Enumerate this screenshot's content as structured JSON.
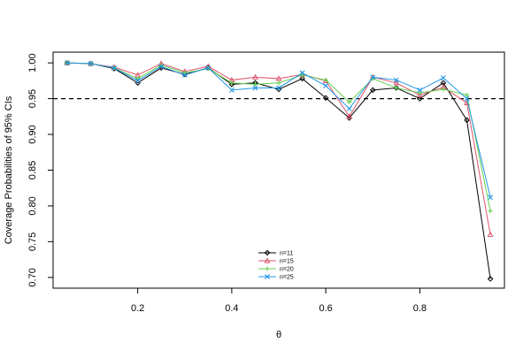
{
  "chart_data": {
    "type": "line",
    "title": "",
    "xlabel": "θ",
    "ylabel": "Coverage Probabilities of 95% CIs",
    "xlim": [
      0.02,
      0.98
    ],
    "ylim": [
      0.685,
      1.015
    ],
    "xticks": [
      0.2,
      0.4,
      0.6,
      0.8
    ],
    "yticks": [
      0.7,
      0.75,
      0.8,
      0.85,
      0.9,
      0.95,
      1.0
    ],
    "x_tick_labels": [
      "0.2",
      "0.4",
      "0.6",
      "0.8"
    ],
    "y_tick_labels": [
      "0.70",
      "0.75",
      "0.80",
      "0.85",
      "0.90",
      "0.95",
      "1.00"
    ],
    "reference_line": {
      "y": 0.95,
      "style": "dashed"
    },
    "grid": false,
    "legend_position": "bottom-center",
    "x": [
      0.05,
      0.1,
      0.15,
      0.2,
      0.25,
      0.3,
      0.35,
      0.4,
      0.45,
      0.5,
      0.55,
      0.6,
      0.65,
      0.7,
      0.75,
      0.8,
      0.85,
      0.9,
      0.95
    ],
    "series": [
      {
        "name": "n=11",
        "color": "#000000",
        "marker": "diamond",
        "values": [
          1.0,
          0.999,
          0.992,
          0.972,
          0.993,
          0.984,
          0.993,
          0.97,
          0.972,
          0.963,
          0.978,
          0.951,
          0.923,
          0.962,
          0.965,
          0.95,
          0.972,
          0.92,
          0.698
        ]
      },
      {
        "name": "n=15",
        "color": "#DF536B",
        "marker": "triangle",
        "values": [
          1.0,
          0.999,
          0.994,
          0.983,
          0.999,
          0.988,
          0.995,
          0.976,
          0.98,
          0.978,
          0.984,
          0.975,
          0.925,
          0.98,
          0.972,
          0.955,
          0.966,
          0.944,
          0.76
        ]
      },
      {
        "name": "n=20",
        "color": "#61D04F",
        "marker": "plus",
        "values": [
          1.0,
          0.999,
          0.993,
          0.978,
          0.997,
          0.986,
          0.992,
          0.972,
          0.97,
          0.972,
          0.983,
          0.976,
          0.945,
          0.978,
          0.965,
          0.958,
          0.963,
          0.955,
          0.793
        ]
      },
      {
        "name": "n=25",
        "color": "#2297E6",
        "marker": "cross",
        "values": [
          1.0,
          0.999,
          0.993,
          0.975,
          0.995,
          0.983,
          0.993,
          0.962,
          0.965,
          0.965,
          0.986,
          0.968,
          0.936,
          0.98,
          0.976,
          0.962,
          0.979,
          0.95,
          0.812
        ]
      }
    ]
  }
}
